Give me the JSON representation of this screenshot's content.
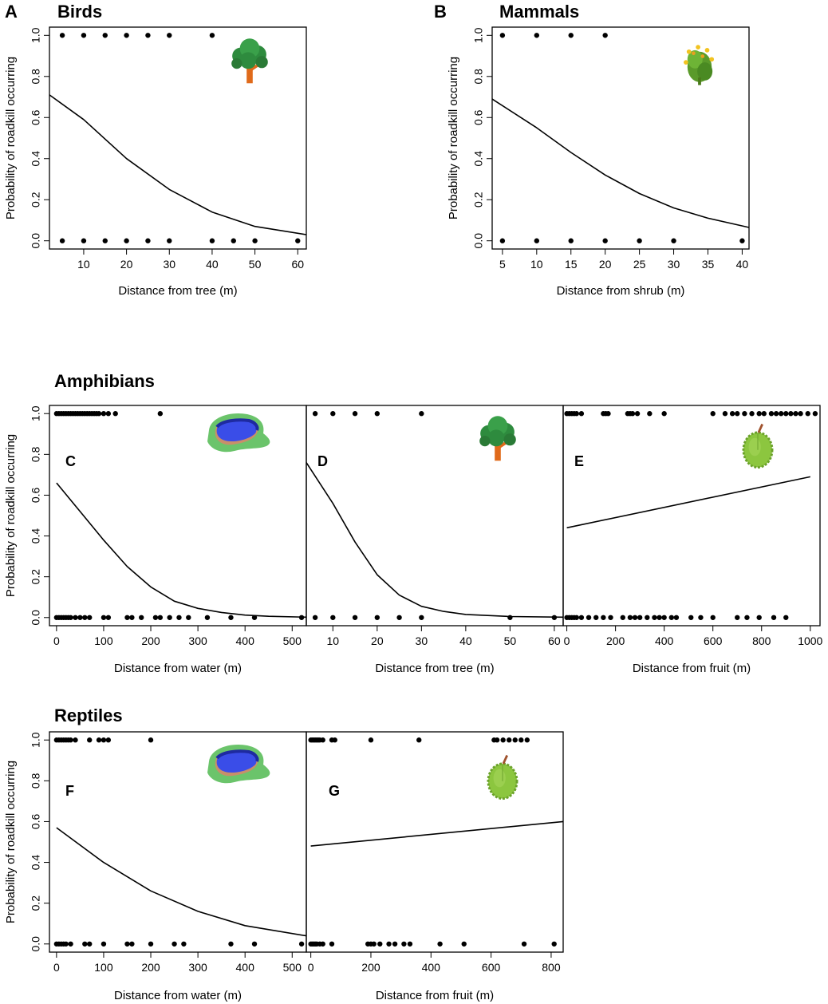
{
  "figure": {
    "group_titles": {
      "birds": "Birds",
      "mammals": "Mammals",
      "amphibians": "Amphibians",
      "reptiles": "Reptiles"
    },
    "ylabel": "Probability of roadkill occurring"
  },
  "colors": {
    "ink": "#000000",
    "tree_canopy": "#2e8b3e",
    "tree_trunk": "#e06a1a",
    "water": "#3a4de8",
    "water_bank": "#6bc46b",
    "fruit": "#8cc63f",
    "shrub": "#5a9a2a",
    "flower": "#f2c320"
  },
  "chart_data": [
    {
      "id": "A",
      "type": "scatter",
      "letter": "A",
      "title": "Birds",
      "icon": "tree-icon",
      "xlabel": "Distance from tree (m)",
      "ylabel": "Probability of roadkill occurring",
      "xlim": [
        2,
        62
      ],
      "ylim": [
        -0.04,
        1.04
      ],
      "xticks": [
        {
          "v": 10,
          "t": "10"
        },
        {
          "v": 20,
          "t": "20"
        },
        {
          "v": 30,
          "t": "30"
        },
        {
          "v": 40,
          "t": "40"
        },
        {
          "v": 50,
          "t": "50"
        },
        {
          "v": 60,
          "t": "60"
        }
      ],
      "yticks": [
        {
          "v": 0,
          "t": "0.0"
        },
        {
          "v": 0.2,
          "t": "0.2"
        },
        {
          "v": 0.4,
          "t": "0.4"
        },
        {
          "v": 0.6,
          "t": "0.6"
        },
        {
          "v": 0.8,
          "t": "0.8"
        },
        {
          "v": 1,
          "t": "1.0"
        }
      ],
      "points_1": [
        5,
        10,
        15,
        20,
        25,
        30,
        40
      ],
      "points_0": [
        5,
        10,
        15,
        20,
        25,
        30,
        40,
        45,
        50,
        60
      ],
      "curve": {
        "x": [
          2,
          10,
          20,
          30,
          40,
          50,
          62
        ],
        "y": [
          0.71,
          0.59,
          0.4,
          0.25,
          0.14,
          0.07,
          0.03
        ]
      }
    },
    {
      "id": "B",
      "type": "scatter",
      "letter": "B",
      "title": "Mammals",
      "icon": "shrub-icon",
      "xlabel": "Distance from shrub (m)",
      "ylabel": "Probability of roadkill occurring",
      "xlim": [
        3.5,
        41
      ],
      "ylim": [
        -0.04,
        1.04
      ],
      "xticks": [
        {
          "v": 5,
          "t": "5"
        },
        {
          "v": 10,
          "t": "10"
        },
        {
          "v": 15,
          "t": "15"
        },
        {
          "v": 20,
          "t": "20"
        },
        {
          "v": 25,
          "t": "25"
        },
        {
          "v": 30,
          "t": "30"
        },
        {
          "v": 35,
          "t": "35"
        },
        {
          "v": 40,
          "t": "40"
        }
      ],
      "yticks": [
        {
          "v": 0,
          "t": "0.0"
        },
        {
          "v": 0.2,
          "t": "0.2"
        },
        {
          "v": 0.4,
          "t": "0.4"
        },
        {
          "v": 0.6,
          "t": "0.6"
        },
        {
          "v": 0.8,
          "t": "0.8"
        },
        {
          "v": 1,
          "t": "1.0"
        }
      ],
      "points_1": [
        5,
        10,
        15,
        20
      ],
      "points_0": [
        5,
        10,
        15,
        20,
        25,
        30,
        40
      ],
      "curve": {
        "x": [
          3.5,
          10,
          15,
          20,
          25,
          30,
          35,
          41
        ],
        "y": [
          0.69,
          0.55,
          0.43,
          0.32,
          0.23,
          0.16,
          0.11,
          0.065
        ]
      }
    },
    {
      "id": "C",
      "type": "scatter",
      "letter": "C",
      "title": "",
      "icon": "water-icon",
      "xlabel": "Distance from water (m)",
      "ylabel": "Probability of roadkill occurring",
      "xlim": [
        -15,
        530
      ],
      "ylim": [
        -0.04,
        1.04
      ],
      "xticks": [
        {
          "v": 0,
          "t": "0"
        },
        {
          "v": 100,
          "t": "100"
        },
        {
          "v": 200,
          "t": "200"
        },
        {
          "v": 300,
          "t": "300"
        },
        {
          "v": 400,
          "t": "400"
        },
        {
          "v": 500,
          "t": "500"
        }
      ],
      "yticks": [
        {
          "v": 0,
          "t": "0.0"
        },
        {
          "v": 0.2,
          "t": "0.2"
        },
        {
          "v": 0.4,
          "t": "0.4"
        },
        {
          "v": 0.6,
          "t": "0.6"
        },
        {
          "v": 0.8,
          "t": "0.8"
        },
        {
          "v": 1,
          "t": "1.0"
        }
      ],
      "points_1": [
        0,
        5,
        10,
        15,
        20,
        25,
        30,
        35,
        40,
        45,
        50,
        55,
        60,
        65,
        70,
        75,
        80,
        85,
        90,
        100,
        110,
        125,
        220
      ],
      "points_0": [
        0,
        5,
        10,
        15,
        20,
        25,
        30,
        40,
        50,
        60,
        70,
        100,
        110,
        150,
        160,
        180,
        210,
        220,
        240,
        260,
        280,
        320,
        370,
        420,
        520
      ],
      "curve": {
        "x": [
          0,
          50,
          100,
          150,
          200,
          250,
          300,
          350,
          400,
          450,
          530
        ],
        "y": [
          0.66,
          0.52,
          0.38,
          0.25,
          0.15,
          0.08,
          0.045,
          0.025,
          0.012,
          0.006,
          0.002
        ]
      }
    },
    {
      "id": "D",
      "type": "scatter",
      "letter": "D",
      "title": "",
      "icon": "tree-icon",
      "xlabel": "Distance from tree (m)",
      "ylabel": "",
      "xlim": [
        4,
        62
      ],
      "ylim": [
        -0.04,
        1.04
      ],
      "xticks": [
        {
          "v": 10,
          "t": "10"
        },
        {
          "v": 20,
          "t": "20"
        },
        {
          "v": 30,
          "t": "30"
        },
        {
          "v": 40,
          "t": "40"
        },
        {
          "v": 50,
          "t": "50"
        },
        {
          "v": 60,
          "t": "60"
        }
      ],
      "yticks": [],
      "points_1": [
        6,
        10,
        15,
        20,
        30
      ],
      "points_0": [
        6,
        10,
        15,
        20,
        25,
        30,
        50,
        60
      ],
      "curve": {
        "x": [
          4,
          10,
          15,
          20,
          25,
          30,
          35,
          40,
          50,
          62
        ],
        "y": [
          0.76,
          0.56,
          0.37,
          0.21,
          0.11,
          0.055,
          0.03,
          0.015,
          0.005,
          0.002
        ]
      }
    },
    {
      "id": "E",
      "type": "scatter",
      "letter": "E",
      "title": "",
      "icon": "durian-icon",
      "xlabel": "Distance from fruit (m)",
      "ylabel": "",
      "xlim": [
        -15,
        1040
      ],
      "ylim": [
        -0.04,
        1.04
      ],
      "xticks": [
        {
          "v": 0,
          "t": "0"
        },
        {
          "v": 200,
          "t": "200"
        },
        {
          "v": 400,
          "t": "400"
        },
        {
          "v": 600,
          "t": "600"
        },
        {
          "v": 800,
          "t": "800"
        },
        {
          "v": 1000,
          "t": "1000"
        }
      ],
      "yticks": [],
      "points_1": [
        0,
        10,
        20,
        30,
        40,
        60,
        150,
        160,
        170,
        250,
        260,
        270,
        290,
        340,
        400,
        600,
        650,
        680,
        700,
        730,
        760,
        790,
        810,
        840,
        860,
        880,
        900,
        920,
        940,
        960,
        990,
        1020
      ],
      "points_0": [
        0,
        10,
        20,
        30,
        40,
        60,
        90,
        120,
        150,
        180,
        230,
        260,
        280,
        300,
        330,
        360,
        380,
        400,
        430,
        450,
        510,
        550,
        600,
        700,
        740,
        790,
        850,
        900
      ],
      "curve": {
        "x": [
          0,
          1000
        ],
        "y": [
          0.44,
          0.69
        ]
      }
    },
    {
      "id": "F",
      "type": "scatter",
      "letter": "F",
      "title": "",
      "icon": "water-icon",
      "xlabel": "Distance from water (m)",
      "ylabel": "Probability of roadkill occurring",
      "xlim": [
        -15,
        530
      ],
      "ylim": [
        -0.04,
        1.04
      ],
      "xticks": [
        {
          "v": 0,
          "t": "0"
        },
        {
          "v": 100,
          "t": "100"
        },
        {
          "v": 200,
          "t": "200"
        },
        {
          "v": 300,
          "t": "300"
        },
        {
          "v": 400,
          "t": "400"
        },
        {
          "v": 500,
          "t": "500"
        }
      ],
      "yticks": [
        {
          "v": 0,
          "t": "0.0"
        },
        {
          "v": 0.2,
          "t": "0.2"
        },
        {
          "v": 0.4,
          "t": "0.4"
        },
        {
          "v": 0.6,
          "t": "0.6"
        },
        {
          "v": 0.8,
          "t": "0.8"
        },
        {
          "v": 1,
          "t": "1.0"
        }
      ],
      "points_1": [
        0,
        5,
        10,
        15,
        20,
        25,
        30,
        40,
        70,
        90,
        100,
        110,
        200
      ],
      "points_0": [
        0,
        5,
        10,
        15,
        20,
        30,
        60,
        70,
        100,
        150,
        160,
        200,
        250,
        270,
        370,
        420,
        520
      ],
      "curve": {
        "x": [
          0,
          100,
          200,
          300,
          400,
          530
        ],
        "y": [
          0.57,
          0.4,
          0.26,
          0.16,
          0.09,
          0.04
        ]
      }
    },
    {
      "id": "G",
      "type": "scatter",
      "letter": "G",
      "title": "",
      "icon": "durian-icon",
      "xlabel": "Distance from fruit (m)",
      "ylabel": "",
      "xlim": [
        -15,
        840
      ],
      "ylim": [
        -0.04,
        1.04
      ],
      "xticks": [
        {
          "v": 0,
          "t": "0"
        },
        {
          "v": 200,
          "t": "200"
        },
        {
          "v": 400,
          "t": "400"
        },
        {
          "v": 600,
          "t": "600"
        },
        {
          "v": 800,
          "t": "800"
        }
      ],
      "yticks": [],
      "points_1": [
        0,
        5,
        10,
        15,
        20,
        25,
        30,
        40,
        70,
        80,
        200,
        360,
        610,
        620,
        640,
        660,
        680,
        700,
        720
      ],
      "points_0": [
        0,
        5,
        10,
        15,
        20,
        30,
        40,
        70,
        190,
        200,
        210,
        230,
        260,
        280,
        310,
        330,
        430,
        510,
        710,
        810
      ],
      "curve": {
        "x": [
          0,
          840
        ],
        "y": [
          0.48,
          0.6
        ]
      }
    }
  ]
}
